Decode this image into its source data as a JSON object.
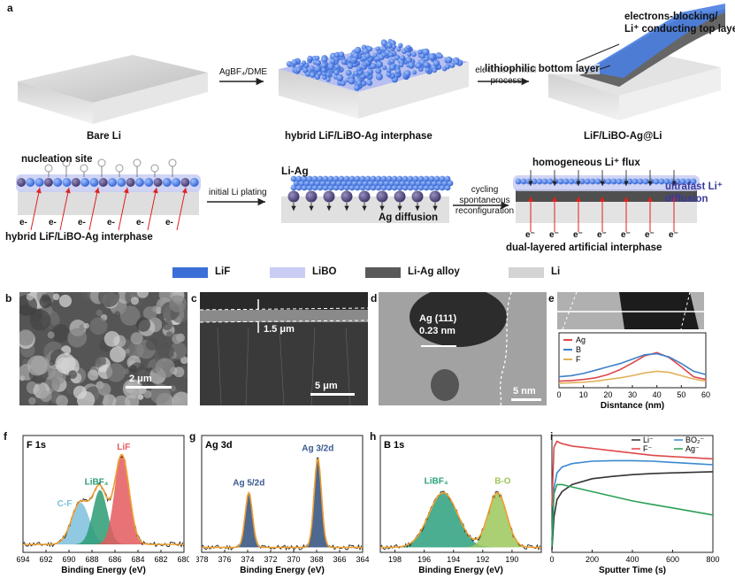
{
  "panel_a": {
    "label": "a",
    "bare_li": "Bare Li",
    "reagent": "AgBF₄/DME",
    "hybrid_interphase": "hybrid LiF/LiBO-Ag interphase",
    "process_line1": "electrochemical",
    "process_line2": "process",
    "product": "LiF/LiBO-Ag@Li",
    "top_layer_line1": "electrons-blocking/",
    "top_layer_line2": "Li⁺ conducting top layer",
    "bottom_layer": "lithiophilic bottom layer",
    "nucleation": "nucleation site",
    "hybrid_interphase_2": "hybrid LiF/LiBO-Ag interphase",
    "initial_plating": "initial Li plating",
    "li_ag": "Li-Ag",
    "ag_diffusion": "Ag diffusion",
    "cycling_line1": "cycling",
    "cycling_line2": "spontaneous",
    "cycling_line3": "reconfiguration",
    "homogeneous_flux": "homogeneous Li⁺ flux",
    "ultrafast_line1": "ultrafast Li⁺",
    "ultrafast_line2": "diffusion",
    "dual_layer": "dual-layered artificial interphase",
    "electron": "e-",
    "electron_sup": "e⁻"
  },
  "legend": [
    {
      "label": "LiF",
      "color": "#3b6fd8"
    },
    {
      "label": "LiBO",
      "color": "#c9cdf3"
    },
    {
      "label": "Li-Ag alloy",
      "color": "#5a5a5a"
    },
    {
      "label": "Li",
      "color": "#d4d4d4"
    }
  ],
  "panel_b": {
    "label": "b",
    "scale": "2 μm"
  },
  "panel_c": {
    "label": "c",
    "thickness": "1.5 μm",
    "scale": "5 μm"
  },
  "panel_d": {
    "label": "d",
    "plane": "Ag (111)",
    "spacing": "0.23 nm",
    "scale": "5 nm"
  },
  "panel_e": {
    "label": "e",
    "chart_data": {
      "type": "line",
      "xlabel": "Disntance (nm)",
      "xlim": [
        0,
        60
      ],
      "ylim": [
        0,
        1
      ],
      "xticks": [
        0,
        10,
        20,
        30,
        40,
        50,
        60
      ],
      "legend_position": "top-left",
      "series": [
        {
          "name": "Ag",
          "color": "#e0474c",
          "x": [
            0,
            5,
            10,
            15,
            20,
            25,
            30,
            35,
            40,
            45,
            50,
            55,
            60
          ],
          "y": [
            0.12,
            0.13,
            0.15,
            0.18,
            0.24,
            0.33,
            0.45,
            0.58,
            0.64,
            0.55,
            0.38,
            0.2,
            0.15
          ]
        },
        {
          "name": "B",
          "color": "#3f7fc8",
          "x": [
            0,
            5,
            10,
            15,
            20,
            25,
            30,
            35,
            40,
            45,
            50,
            55,
            60
          ],
          "y": [
            0.2,
            0.22,
            0.26,
            0.32,
            0.38,
            0.44,
            0.52,
            0.6,
            0.62,
            0.56,
            0.44,
            0.3,
            0.24
          ]
        },
        {
          "name": "F",
          "color": "#e0b25a",
          "x": [
            0,
            5,
            10,
            15,
            20,
            25,
            30,
            35,
            40,
            45,
            50,
            55,
            60
          ],
          "y": [
            0.08,
            0.09,
            0.1,
            0.12,
            0.15,
            0.18,
            0.22,
            0.27,
            0.3,
            0.28,
            0.22,
            0.16,
            0.12
          ]
        }
      ]
    }
  },
  "panel_f": {
    "label": "f",
    "title": "F 1s",
    "chart_data": {
      "type": "line",
      "xlabel": "Binding Energy (eV)",
      "xlim": [
        694,
        680
      ],
      "xticks": [
        694,
        692,
        690,
        688,
        686,
        684,
        682,
        680
      ],
      "peaks": [
        {
          "name": "C-F",
          "center": 689.0,
          "height": 0.42,
          "width": 1.1,
          "color": "#7cc0dc"
        },
        {
          "name": "LiBF₄",
          "center": 687.3,
          "height": 0.55,
          "width": 0.9,
          "color": "#2b9c74"
        },
        {
          "name": "LiF",
          "center": 685.4,
          "height": 0.9,
          "width": 0.9,
          "color": "#e45a5e"
        }
      ],
      "baseline": 0.08
    }
  },
  "panel_g": {
    "label": "g",
    "title": "Ag 3d",
    "chart_data": {
      "type": "line",
      "xlabel": "Binding Energy (eV)",
      "xlim": [
        378,
        364
      ],
      "xticks": [
        378,
        376,
        374,
        372,
        370,
        368,
        366,
        364
      ],
      "peaks": [
        {
          "name": "Ag 5/2d",
          "center": 373.9,
          "height": 0.55,
          "width": 0.45,
          "color": "#2f4d7c"
        },
        {
          "name": "Ag 3/2d",
          "center": 367.9,
          "height": 0.9,
          "width": 0.45,
          "color": "#2f4d7c"
        }
      ],
      "baseline": 0.05
    }
  },
  "panel_h": {
    "label": "h",
    "title": "B 1s",
    "chart_data": {
      "type": "line",
      "xlabel": "Binding Energy (eV)",
      "xlim": [
        199,
        188
      ],
      "xticks": [
        198,
        196,
        194,
        192,
        190
      ],
      "peaks": [
        {
          "name": "LiBF₄",
          "center": 194.7,
          "height": 0.55,
          "width": 1.4,
          "color": "#2ba07c"
        },
        {
          "name": "B-O",
          "center": 191.0,
          "height": 0.55,
          "width": 0.9,
          "color": "#9cc75a"
        }
      ],
      "baseline": 0.05
    }
  },
  "panel_i": {
    "label": "i",
    "chart_data": {
      "type": "line",
      "xlabel": "Sputter Time (s)",
      "xlim": [
        0,
        800
      ],
      "ylim": [
        0,
        1
      ],
      "xticks": [
        0,
        200,
        400,
        600,
        800
      ],
      "legend_position": "top-right",
      "series": [
        {
          "name": "Li⁻",
          "color": "#333333",
          "x": [
            0,
            10,
            25,
            50,
            100,
            200,
            300,
            400,
            500,
            600,
            700,
            800
          ],
          "y": [
            0.02,
            0.3,
            0.45,
            0.52,
            0.58,
            0.63,
            0.65,
            0.665,
            0.675,
            0.68,
            0.685,
            0.69
          ]
        },
        {
          "name": "BO₂⁻",
          "color": "#3a88d0",
          "x": [
            0,
            10,
            25,
            50,
            100,
            200,
            300,
            400,
            500,
            600,
            700,
            800
          ],
          "y": [
            0.1,
            0.55,
            0.68,
            0.73,
            0.76,
            0.78,
            0.785,
            0.785,
            0.78,
            0.77,
            0.76,
            0.75
          ]
        },
        {
          "name": "F⁻",
          "color": "#e0474c",
          "x": [
            0,
            10,
            25,
            50,
            100,
            200,
            300,
            400,
            500,
            600,
            700,
            800
          ],
          "y": [
            0.4,
            0.9,
            0.95,
            0.93,
            0.91,
            0.89,
            0.87,
            0.85,
            0.83,
            0.82,
            0.81,
            0.8
          ]
        },
        {
          "name": "Ag⁻",
          "color": "#2aa055",
          "x": [
            0,
            10,
            25,
            50,
            100,
            200,
            300,
            400,
            500,
            600,
            700,
            800
          ],
          "y": [
            0.05,
            0.5,
            0.58,
            0.58,
            0.56,
            0.52,
            0.48,
            0.44,
            0.41,
            0.38,
            0.35,
            0.32
          ]
        }
      ]
    }
  }
}
